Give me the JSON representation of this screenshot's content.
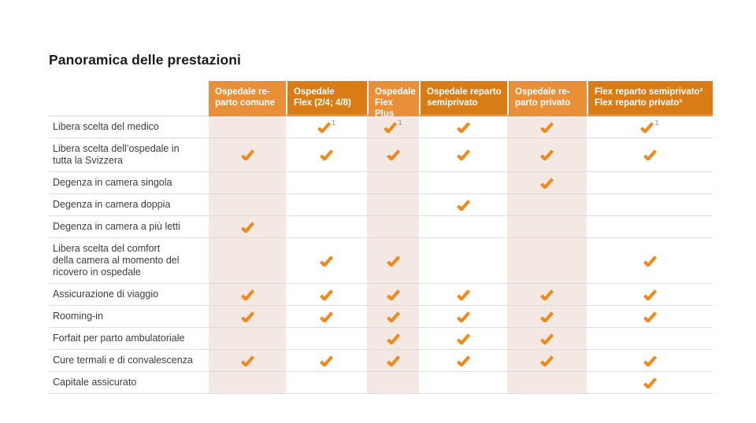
{
  "page": {
    "title": "Panoramica delle prestazioni"
  },
  "colors": {
    "header_light": "#E98F38",
    "header_dark": "#D97C16",
    "header_underline": "#E9912E",
    "check": "#ED8A20",
    "column_shade": "#F3E9E2",
    "row_divider": "#DCDCDC"
  },
  "table": {
    "sup_label": "1",
    "columns": [
      {
        "label": "Ospedale re-\nparto comune",
        "tone": "light"
      },
      {
        "label": "Ospedale\nFlex (2/4; 4/8)",
        "tone": "dark"
      },
      {
        "label": "Ospedale\nFlex Plus",
        "tone": "light"
      },
      {
        "label": "Ospedale reparto\nsemiprivato",
        "tone": "dark"
      },
      {
        "label": "Ospedale re-\nparto privato",
        "tone": "light"
      },
      {
        "label": "Flex reparto semiprivato²\nFlex reparto privato³",
        "tone": "dark"
      }
    ],
    "rows": [
      {
        "label": "Libera scelta del medico",
        "cells": [
          "",
          "check1",
          "check1",
          "check",
          "check",
          "check1"
        ]
      },
      {
        "label": "Libera scelta dell’ospedale in\ntutta la Svizzera",
        "cells": [
          "check",
          "check",
          "check",
          "check",
          "check",
          "check"
        ]
      },
      {
        "label": "Degenza in camera singola",
        "cells": [
          "",
          "",
          "",
          "",
          "check",
          ""
        ]
      },
      {
        "label": "Degenza in camera doppia",
        "cells": [
          "",
          "",
          "",
          "check",
          "",
          ""
        ]
      },
      {
        "label": "Degenza in camera a più letti",
        "cells": [
          "check",
          "",
          "",
          "",
          "",
          ""
        ]
      },
      {
        "label": "Libera scelta del comfort\ndella camera al momento del\nricovero in ospedale",
        "cells": [
          "",
          "check",
          "check",
          "",
          "",
          "check"
        ]
      },
      {
        "label": "Assicurazione di viaggio",
        "cells": [
          "check",
          "check",
          "check",
          "check",
          "check",
          "check"
        ]
      },
      {
        "label": "Rooming-in",
        "cells": [
          "check",
          "check",
          "check",
          "check",
          "check",
          "check"
        ]
      },
      {
        "label": "Forfait per parto ambulatoriale",
        "cells": [
          "",
          "",
          "check",
          "check",
          "check",
          ""
        ]
      },
      {
        "label": "Cure termali e di convalescenza",
        "cells": [
          "check",
          "check",
          "check",
          "check",
          "check",
          "check"
        ]
      },
      {
        "label": "Capitale assicurato",
        "cells": [
          "",
          "",
          "",
          "",
          "",
          "check"
        ]
      }
    ]
  }
}
